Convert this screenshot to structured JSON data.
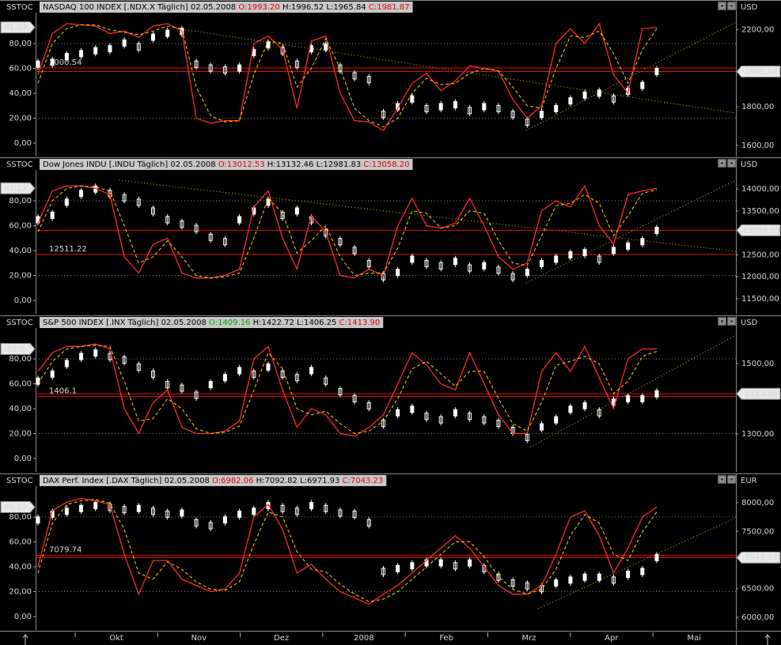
{
  "chart_data": [
    {
      "type": "stock",
      "indicator": "SSTOC",
      "indicator_value": "91,09",
      "title": "NASDAQ 100 INDEX [.NDX.X  Täglich]",
      "date": "02.05.2008",
      "quote": [
        {
          "text": "O:1993.20",
          "color": "#e00000"
        },
        {
          "text": "H:1996.52",
          "color": "#000000"
        },
        {
          "text": "L:1965.84",
          "color": "#000000"
        },
        {
          "text": "C:1981.87",
          "color": "#e00000"
        }
      ],
      "currency": "USD",
      "levels": [
        2000.54
      ],
      "last_price": {
        "value": 1981.87,
        "label": "1981,87"
      },
      "ylim": [
        -10.8,
        104.8
      ],
      "yticks": [
        {
          "value": 0,
          "label": "0,00"
        },
        {
          "value": 20,
          "label": "20,00"
        },
        {
          "value": 40,
          "label": "40,00"
        },
        {
          "value": 60,
          "label": "60,00"
        },
        {
          "value": 80,
          "label": "80,00"
        }
      ],
      "grid_levels": [
        20,
        80
      ],
      "y2lim": [
        1542,
        2287
      ],
      "y2ticks": [
        {
          "value": 1600,
          "label": "1600,00"
        },
        {
          "value": 1800,
          "label": "1800,00"
        },
        {
          "value": 2200,
          "label": "2200,00"
        }
      ],
      "series": [
        {
          "color": "#ffffff",
          "axis": "y2",
          "style": "candle",
          "values": [
            2020,
            2030,
            2060,
            2075,
            2090,
            2100,
            2130,
            2110,
            2160,
            2180,
            2190,
            2020,
            2000,
            1990,
            2000,
            2080,
            2120,
            2090,
            2020,
            2100,
            2110,
            2000,
            1960,
            1940,
            1760,
            1800,
            1840,
            1790,
            1800,
            1810,
            1780,
            1800,
            1790,
            1760,
            1720,
            1760,
            1790,
            1830,
            1860,
            1870,
            1840,
            1880,
            1910,
            1981.87
          ]
        },
        {
          "color": "#ff2a2a",
          "style": "solid",
          "values": [
            55,
            88,
            96,
            95,
            94,
            88,
            90,
            85,
            94,
            96,
            90,
            20,
            16,
            18,
            18,
            80,
            86,
            75,
            28,
            82,
            86,
            40,
            18,
            17,
            10,
            28,
            48,
            56,
            42,
            50,
            62,
            60,
            58,
            35,
            20,
            30,
            80,
            92,
            80,
            96,
            55,
            40,
            92,
            93
          ]
        },
        {
          "color": "#ffd700",
          "style": "dashed",
          "values": [
            48,
            80,
            92,
            95,
            95,
            91,
            89,
            87,
            90,
            94,
            92,
            45,
            22,
            17,
            18,
            55,
            82,
            80,
            45,
            60,
            84,
            60,
            28,
            18,
            13,
            20,
            40,
            52,
            47,
            48,
            56,
            60,
            58,
            45,
            30,
            28,
            60,
            86,
            85,
            90,
            72,
            48,
            75,
            92
          ]
        }
      ]
    },
    {
      "type": "stock",
      "indicator": "SSTOC",
      "indicator_value": "87,13",
      "title": "Dow Jones INDU [.INDU  Täglich]",
      "date": "02.05.2008",
      "quote": [
        {
          "text": "O:13012.53",
          "color": "#e00000"
        },
        {
          "text": "H:13132.46",
          "color": "#000000"
        },
        {
          "text": "L:12981.83",
          "color": "#000000"
        },
        {
          "text": "C:13058.20",
          "color": "#e00000"
        }
      ],
      "currency": "USD",
      "levels": [
        12511.22
      ],
      "last_price": {
        "value": 13058.2,
        "label": "13058,20"
      },
      "ylim": [
        -10.8,
        104.8
      ],
      "yticks": [
        {
          "value": 0,
          "label": "0,00"
        },
        {
          "value": 20,
          "label": "20,00"
        },
        {
          "value": 40,
          "label": "40,00"
        },
        {
          "value": 60,
          "label": "60,00"
        },
        {
          "value": 80,
          "label": "80,00"
        }
      ],
      "grid_levels": [
        20,
        80
      ],
      "y2lim": [
        11155,
        14436
      ],
      "y2ticks": [
        {
          "value": 11500,
          "label": "11500,00"
        },
        {
          "value": 12000,
          "label": "12000,00"
        },
        {
          "value": 12500,
          "label": "12500,00"
        },
        {
          "value": 13500,
          "label": "13500,00"
        },
        {
          "value": 14000,
          "label": "14000,00"
        }
      ],
      "series": [
        {
          "color": "#ffffff",
          "axis": "y2",
          "style": "candle",
          "values": [
            13300,
            13400,
            13700,
            13900,
            14000,
            13900,
            13800,
            13700,
            13500,
            13300,
            13200,
            13100,
            12900,
            12800,
            13300,
            13500,
            13700,
            13400,
            13500,
            13300,
            13000,
            12800,
            12600,
            12300,
            12000,
            12100,
            12400,
            12300,
            12250,
            12350,
            12200,
            12250,
            12150,
            12000,
            12100,
            12300,
            12400,
            12500,
            12550,
            12400,
            12600,
            12700,
            12800,
            13058.2
          ]
        },
        {
          "color": "#ff2a2a",
          "style": "solid",
          "values": [
            62,
            88,
            92,
            92,
            90,
            85,
            35,
            22,
            45,
            50,
            22,
            18,
            18,
            20,
            25,
            75,
            88,
            50,
            25,
            68,
            55,
            20,
            18,
            25,
            20,
            60,
            82,
            60,
            58,
            62,
            82,
            60,
            35,
            25,
            30,
            72,
            80,
            75,
            92,
            60,
            45,
            85,
            88,
            90
          ]
        },
        {
          "color": "#ffd700",
          "style": "dashed",
          "values": [
            55,
            80,
            90,
            92,
            91,
            88,
            60,
            30,
            35,
            48,
            35,
            20,
            18,
            19,
            22,
            50,
            82,
            70,
            38,
            48,
            60,
            35,
            20,
            22,
            22,
            42,
            72,
            70,
            58,
            60,
            72,
            70,
            48,
            30,
            28,
            52,
            76,
            78,
            85,
            78,
            52,
            68,
            86,
            89
          ]
        }
      ]
    },
    {
      "type": "stock",
      "indicator": "SSTOC",
      "indicator_value": "88,5",
      "title": "S&P 500 INDEX [.INX  Täglich]",
      "date": "02.05.2008",
      "quote": [
        {
          "text": "O:1409.16",
          "color": "#00a000"
        },
        {
          "text": "H:1422.72",
          "color": "#000000"
        },
        {
          "text": "L:1406.25",
          "color": "#000000"
        },
        {
          "text": "C:1413.90",
          "color": "#e00000"
        }
      ],
      "currency": "USD",
      "levels": [
        1406.1
      ],
      "last_price": {
        "value": 1413.9,
        "label": "1413,90"
      },
      "ylim": [
        -10.8,
        104.8
      ],
      "yticks": [
        {
          "value": 0,
          "label": "0,00"
        },
        {
          "value": 20,
          "label": "20,00"
        },
        {
          "value": 40,
          "label": "40,00"
        },
        {
          "value": 60,
          "label": "60,00"
        },
        {
          "value": 80,
          "label": "80,00"
        }
      ],
      "grid_levels": [
        20,
        80
      ],
      "y2lim": [
        1192,
        1601
      ],
      "y2ticks": [
        {
          "value": 1300,
          "label": "1300,00"
        },
        {
          "value": 1500,
          "label": "1500,00"
        }
      ],
      "series": [
        {
          "color": "#ffffff",
          "axis": "y2",
          "style": "candle",
          "values": [
            1450,
            1470,
            1500,
            1520,
            1530,
            1520,
            1510,
            1490,
            1470,
            1440,
            1430,
            1410,
            1440,
            1460,
            1480,
            1470,
            1490,
            1470,
            1460,
            1480,
            1450,
            1420,
            1400,
            1380,
            1330,
            1360,
            1370,
            1350,
            1340,
            1360,
            1350,
            1340,
            1330,
            1310,
            1290,
            1320,
            1340,
            1370,
            1380,
            1360,
            1390,
            1400,
            1400,
            1413.9
          ]
        },
        {
          "color": "#ff2a2a",
          "style": "solid",
          "values": [
            70,
            85,
            90,
            90,
            92,
            88,
            40,
            20,
            45,
            55,
            25,
            20,
            20,
            22,
            30,
            80,
            90,
            55,
            25,
            40,
            35,
            20,
            18,
            25,
            35,
            60,
            85,
            75,
            60,
            55,
            85,
            60,
            35,
            20,
            20,
            70,
            85,
            70,
            90,
            65,
            40,
            80,
            88,
            88
          ]
        },
        {
          "color": "#ffd700",
          "style": "dashed",
          "values": [
            60,
            78,
            88,
            90,
            91,
            90,
            62,
            30,
            32,
            48,
            40,
            24,
            20,
            21,
            26,
            55,
            85,
            72,
            40,
            35,
            38,
            28,
            20,
            22,
            30,
            48,
            72,
            78,
            68,
            58,
            70,
            70,
            48,
            28,
            22,
            45,
            75,
            78,
            82,
            76,
            52,
            62,
            82,
            86
          ]
        }
      ]
    },
    {
      "type": "stock",
      "indicator": "SSTOC",
      "indicator_value": "89,85",
      "title": "DAX Perf. Index [.DAX  Täglich]",
      "date": "02.05.2008",
      "quote": [
        {
          "text": "O:6982.06",
          "color": "#e00000"
        },
        {
          "text": "H:7092.82",
          "color": "#000000"
        },
        {
          "text": "L:6971.93",
          "color": "#000000"
        },
        {
          "text": "C:7043.23",
          "color": "#e00000"
        }
      ],
      "currency": "EUR",
      "levels": [
        7079.74
      ],
      "last_price": {
        "value": 7043.23,
        "label": "7043,23"
      },
      "ylim": [
        -10.8,
        104.8
      ],
      "yticks": [
        {
          "value": 0,
          "label": "0,00"
        },
        {
          "value": 20,
          "label": "20,00"
        },
        {
          "value": 40,
          "label": "40,00"
        },
        {
          "value": 60,
          "label": "60,00"
        },
        {
          "value": 80,
          "label": "80,00"
        }
      ],
      "grid_levels": [
        20,
        80
      ],
      "y2lim": [
        5779,
        8290
      ],
      "y2ticks": [
        {
          "value": 6000,
          "label": "6000,00"
        },
        {
          "value": 6500,
          "label": "6500,00"
        },
        {
          "value": 7500,
          "label": "7500,00"
        },
        {
          "value": 8000,
          "label": "8000,00"
        }
      ],
      "series": [
        {
          "color": "#ffffff",
          "axis": "y2",
          "style": "candle",
          "values": [
            7700,
            7800,
            7850,
            7900,
            7950,
            7920,
            7880,
            7900,
            7850,
            7800,
            7820,
            7650,
            7600,
            7700,
            7800,
            7850,
            7950,
            7900,
            7850,
            7950,
            7900,
            7820,
            7800,
            7650,
            6800,
            6850,
            6900,
            6950,
            6950,
            6900,
            6950,
            6850,
            6700,
            6600,
            6550,
            6500,
            6600,
            6650,
            6700,
            6700,
            6650,
            6750,
            6800,
            7043.23
          ]
        },
        {
          "color": "#ff2a2a",
          "style": "solid",
          "values": [
            40,
            85,
            92,
            95,
            93,
            90,
            50,
            18,
            45,
            45,
            30,
            25,
            20,
            22,
            35,
            80,
            90,
            70,
            35,
            42,
            30,
            20,
            15,
            10,
            18,
            25,
            35,
            45,
            55,
            65,
            55,
            40,
            25,
            18,
            18,
            25,
            50,
            80,
            85,
            65,
            35,
            55,
            80,
            88
          ]
        },
        {
          "color": "#ffd700",
          "style": "dashed",
          "values": [
            35,
            75,
            90,
            93,
            94,
            91,
            70,
            35,
            30,
            44,
            38,
            28,
            22,
            21,
            28,
            58,
            84,
            80,
            52,
            38,
            36,
            26,
            18,
            12,
            14,
            20,
            30,
            40,
            50,
            60,
            60,
            48,
            32,
            22,
            18,
            22,
            38,
            65,
            82,
            75,
            50,
            45,
            68,
            84
          ]
        }
      ]
    }
  ],
  "time_axis": [
    "Okt",
    "Nov",
    "Dez",
    "2008",
    "Feb",
    "Mrz",
    "Apr",
    "Mai"
  ]
}
